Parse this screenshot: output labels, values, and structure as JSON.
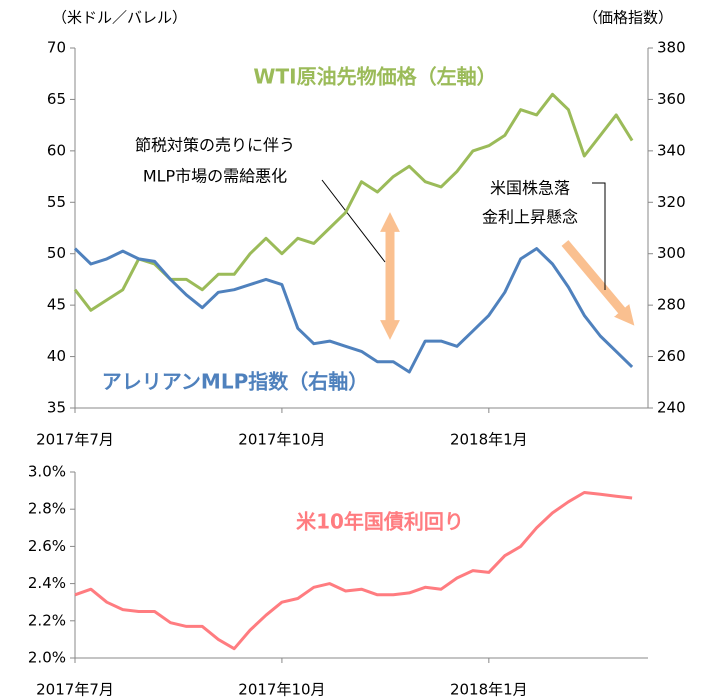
{
  "chart_data": [
    {
      "type": "line",
      "y_label": "（米ドル／バレル）",
      "y2_label": "（価格指数）",
      "xlim": [
        0,
        36
      ],
      "xticks": [
        {
          "value": 0,
          "label": "2017年7月"
        },
        {
          "value": 13,
          "label": "2017年10月"
        },
        {
          "value": 26,
          "label": "2018年1月"
        }
      ],
      "ylim": [
        35,
        70
      ],
      "yticks": [
        35,
        40,
        45,
        50,
        55,
        60,
        65,
        70
      ],
      "y2lim": [
        240,
        380
      ],
      "y2ticks": [
        240,
        260,
        280,
        300,
        320,
        340,
        360,
        380
      ],
      "x": [
        0,
        1,
        2,
        3,
        4,
        5,
        6,
        7,
        8,
        9,
        10,
        11,
        12,
        13,
        14,
        15,
        16,
        17,
        18,
        19,
        20,
        21,
        22,
        23,
        24,
        25,
        26,
        27,
        28,
        29,
        30,
        31,
        32,
        33,
        34,
        35
      ],
      "series": [
        {
          "name": "WTI原油先物価格（左軸）",
          "color": "#9bbb59",
          "values": [
            46.5,
            44.5,
            45.5,
            46.5,
            49.5,
            49,
            47.5,
            47.5,
            46.5,
            48,
            48,
            50,
            51.5,
            50,
            51.5,
            51,
            52.5,
            54,
            57,
            56,
            57.5,
            58.5,
            57,
            56.5,
            58,
            60,
            60.5,
            61.5,
            64,
            63.5,
            65.5,
            64,
            59.5,
            61.5,
            63.5,
            61
          ]
        },
        {
          "name": "アレリアンMLP指数（右軸）",
          "color": "#4f81bd",
          "axis": "y2",
          "values": [
            302,
            296,
            298,
            301,
            298,
            297,
            290,
            284,
            279,
            285,
            286,
            288,
            290,
            288,
            271,
            265,
            266,
            264,
            262,
            258,
            258,
            254,
            266,
            266,
            264,
            270,
            276,
            285,
            298,
            302,
            296,
            287,
            276,
            268,
            262,
            256
          ]
        }
      ],
      "annotations": [
        "節税対策の売りに伴う",
        "MLP市場の需給悪化",
        "米国株急落",
        "金利上昇懸念"
      ]
    },
    {
      "type": "line",
      "xlim": [
        0,
        36
      ],
      "xticks": [
        {
          "value": 0,
          "label": "2017年7月"
        },
        {
          "value": 13,
          "label": "2017年10月"
        },
        {
          "value": 26,
          "label": "2018年1月"
        }
      ],
      "ylim": [
        2.0,
        3.0
      ],
      "yticks": [
        {
          "value": 2.0,
          "label": "2.0%"
        },
        {
          "value": 2.2,
          "label": "2.2%"
        },
        {
          "value": 2.4,
          "label": "2.4%"
        },
        {
          "value": 2.6,
          "label": "2.6%"
        },
        {
          "value": 2.8,
          "label": "2.8%"
        },
        {
          "value": 3.0,
          "label": "3.0%"
        }
      ],
      "x": [
        0,
        1,
        2,
        3,
        4,
        5,
        6,
        7,
        8,
        9,
        10,
        11,
        12,
        13,
        14,
        15,
        16,
        17,
        18,
        19,
        20,
        21,
        22,
        23,
        24,
        25,
        26,
        27,
        28,
        29,
        30,
        31,
        32,
        33,
        34,
        35
      ],
      "series": [
        {
          "name": "米10年国債利回り",
          "color": "#ff7c80",
          "values": [
            2.34,
            2.37,
            2.3,
            2.26,
            2.25,
            2.25,
            2.19,
            2.17,
            2.17,
            2.1,
            2.05,
            2.15,
            2.23,
            2.3,
            2.32,
            2.38,
            2.4,
            2.36,
            2.37,
            2.34,
            2.34,
            2.35,
            2.38,
            2.37,
            2.43,
            2.47,
            2.46,
            2.55,
            2.6,
            2.7,
            2.78,
            2.84,
            2.89,
            2.88,
            2.87,
            2.86
          ]
        }
      ]
    }
  ]
}
